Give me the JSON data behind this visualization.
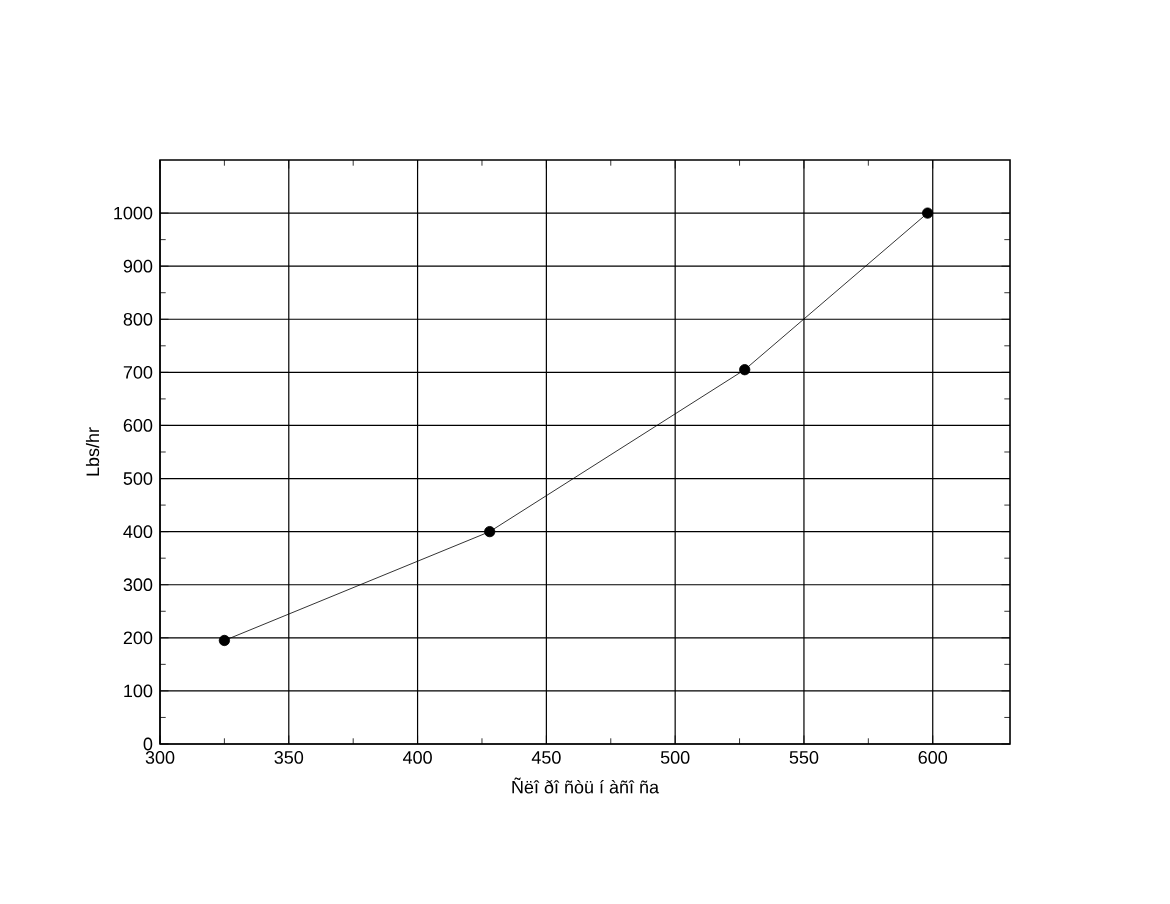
{
  "chart_data": {
    "type": "line",
    "xlabel": "Ñëî ðî ñòü í àñî ña",
    "ylabel": "Lbs/hr",
    "x": [
      325,
      428,
      527,
      598
    ],
    "series": [
      {
        "color": "#000000",
        "values": [
          195,
          400,
          705,
          1000
        ]
      }
    ],
    "xlim": [
      300,
      630
    ],
    "xticks": [
      300,
      350,
      400,
      450,
      500,
      550,
      600
    ],
    "ylim": [
      0,
      1100
    ],
    "yticks": [
      0,
      100,
      200,
      300,
      400,
      500,
      600,
      700,
      800,
      900,
      1000
    ],
    "grid": true,
    "marker": "circle",
    "line_style": "solid"
  }
}
